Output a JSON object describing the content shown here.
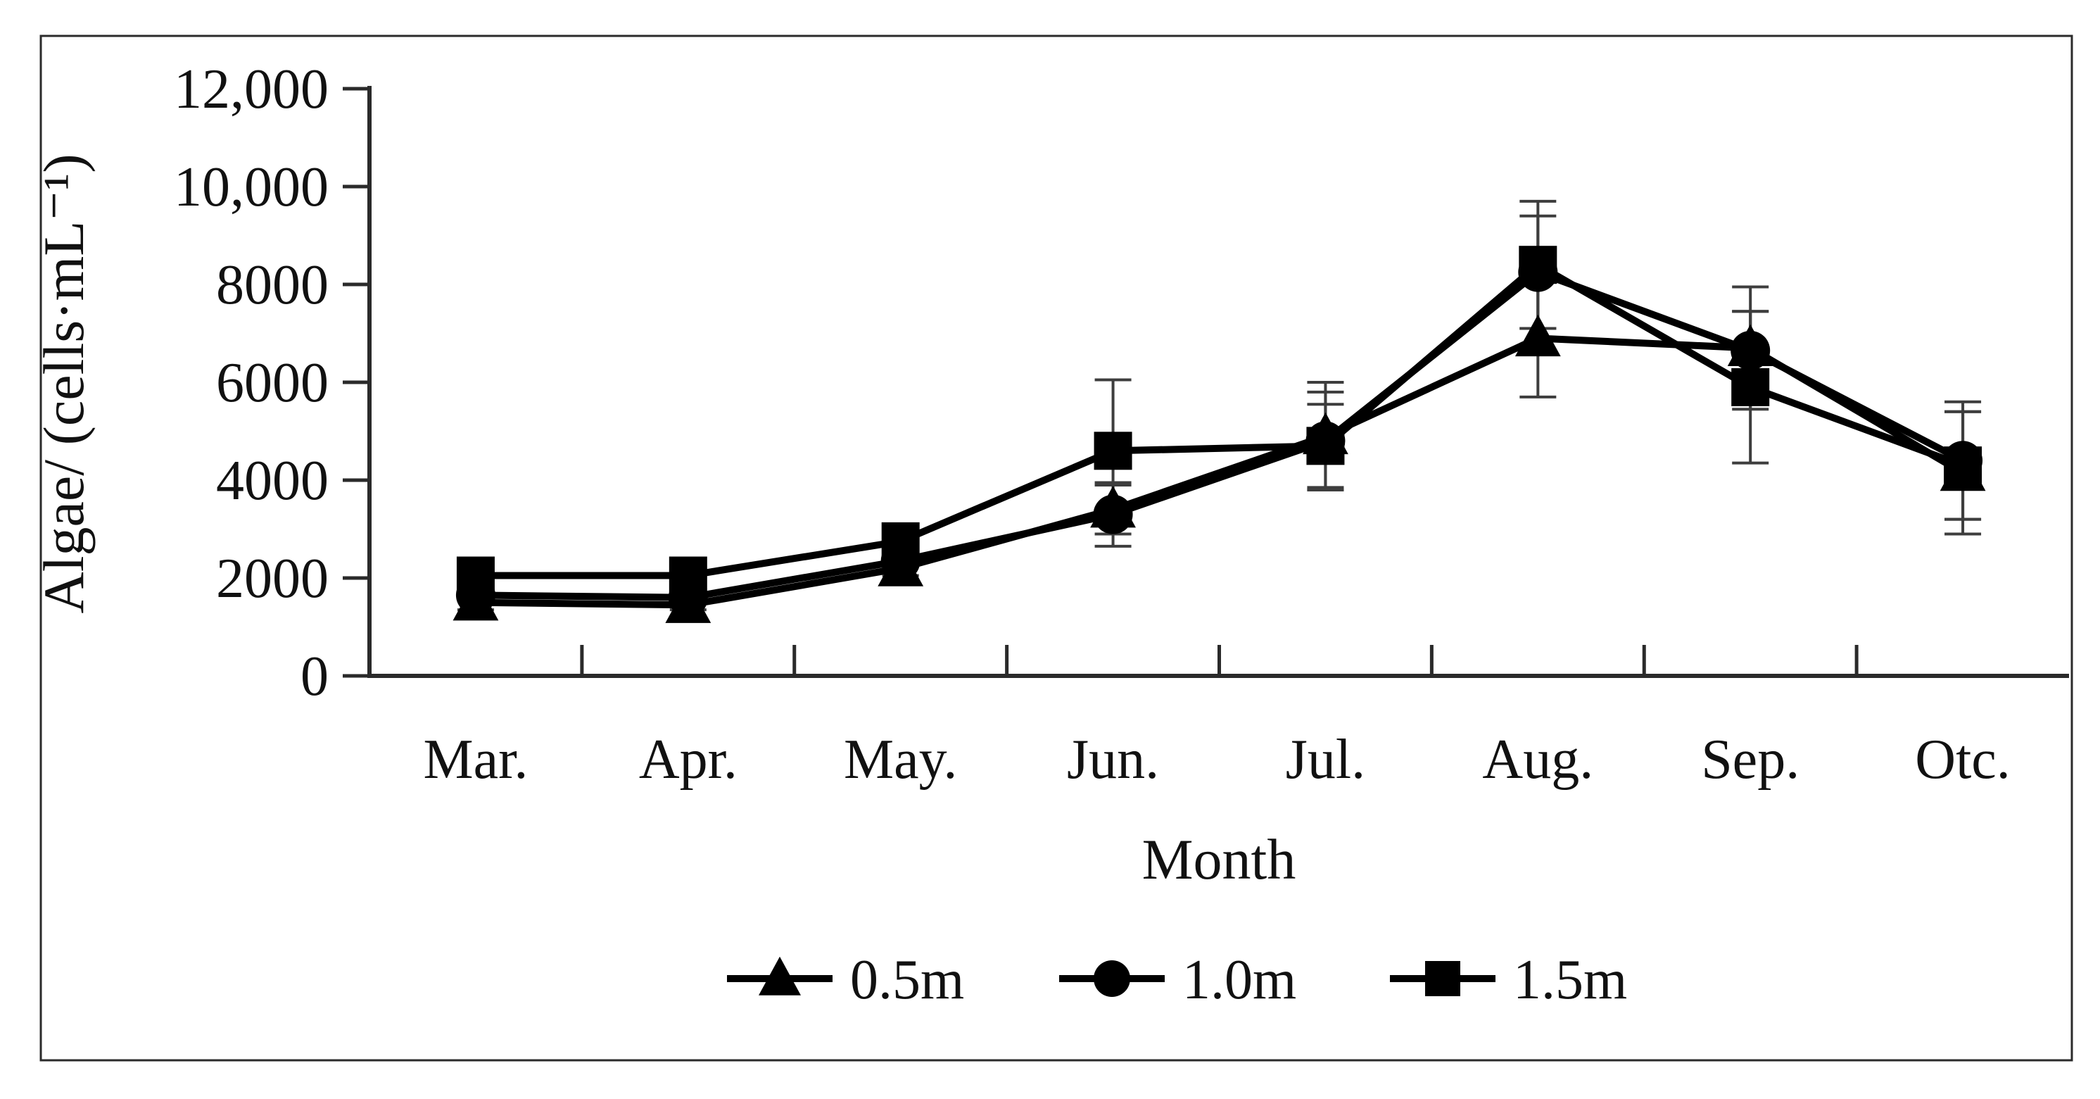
{
  "figure": {
    "background": "#ffffff",
    "border_color": "#2b2b2b",
    "axis_color": "#2a2a2a",
    "series_color": "#000000",
    "error_bar_color": "#3d3d3d"
  },
  "chart_data": {
    "type": "line",
    "title": "",
    "xlabel": "Month",
    "ylabel": "Algae/ (cells·mL⁻¹)",
    "categories": [
      "Mar.",
      "Apr.",
      "May.",
      "Jun.",
      "Jul.",
      "Aug.",
      "Sep.",
      "Otc."
    ],
    "ylim": [
      0,
      12000
    ],
    "y_tick_values": [
      0,
      2000,
      4000,
      6000,
      8000,
      10000,
      12000
    ],
    "y_tick_labels": [
      "0",
      "2000",
      "4000",
      "6000",
      "8000",
      "10,000",
      "12,000"
    ],
    "grid": false,
    "legend_position": "bottom-center",
    "series": [
      {
        "name": "0.5m",
        "marker": "triangle",
        "color": "#000000",
        "values": [
          1500,
          1450,
          2200,
          3400,
          4900,
          6900,
          6700,
          4150
        ],
        "errors": [
          250,
          300,
          250,
          500,
          1100,
          1200,
          1250,
          1250
        ]
      },
      {
        "name": "1.0m",
        "marker": "circle",
        "color": "#000000",
        "values": [
          1650,
          1600,
          2350,
          3300,
          4800,
          8250,
          6650,
          4400
        ],
        "errors": [
          300,
          250,
          300,
          650,
          1000,
          1150,
          800,
          1200
        ]
      },
      {
        "name": "1.5m",
        "marker": "square",
        "color": "#000000",
        "values": [
          2050,
          2050,
          2750,
          4600,
          4700,
          8400,
          5900,
          4300
        ],
        "errors": [
          300,
          350,
          350,
          1450,
          850,
          1300,
          1550,
          1100
        ]
      }
    ]
  }
}
